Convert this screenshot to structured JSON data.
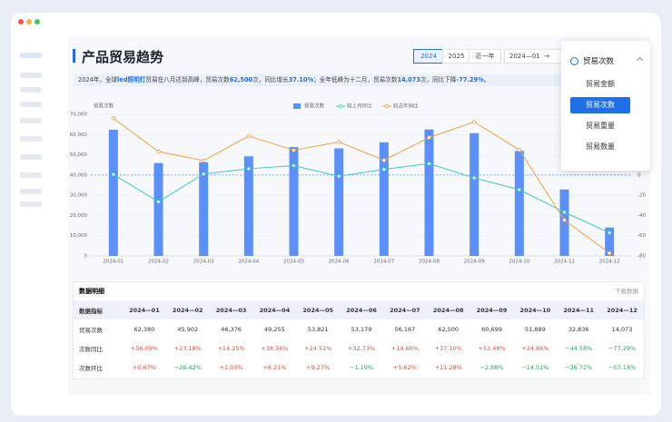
{
  "header": {
    "title": "产品贸易趋势",
    "buttons": [
      "2024",
      "2025",
      "近一年"
    ],
    "selected_button": 0,
    "date_start": "2024—01"
  },
  "summary": [
    "2024年，全球",
    "led照明灯",
    "贸易在八月达到高峰，贸易次数",
    "62,500",
    "次，同比增长",
    "37.10%",
    "；全年低峰为十二月，贸易次数",
    "14,073",
    "次，同比下降",
    "-77.29%",
    "。"
  ],
  "dropdown": {
    "label": "贸易次数",
    "options": [
      "贸易金额",
      "贸易次数",
      "贸易重量",
      "贸易数量"
    ],
    "selected": 1
  },
  "chart_data": {
    "type": "bar",
    "y_label": "贸易次数",
    "categories": [
      "2024-01",
      "2024-02",
      "2024-03",
      "2024-04",
      "2024-05",
      "2024-06",
      "2024-07",
      "2024-08",
      "2024-09",
      "2024-10",
      "2024-11",
      "2024-12"
    ],
    "series": [
      {
        "name": "贸易次数",
        "type": "bar",
        "color": "#5b8ff9",
        "values": [
          62380,
          45902,
          46376,
          49255,
          53821,
          53179,
          56167,
          62500,
          60699,
          51889,
          32836,
          14073
        ]
      },
      {
        "name": "较上月环比",
        "type": "line",
        "axis": "y2",
        "color": "#3cc9c1",
        "values": [
          0.67,
          -26.42,
          1.03,
          6.21,
          9.27,
          -1.19,
          5.62,
          11.28,
          -2.88,
          -14.51,
          -36.72,
          -57.14
        ]
      },
      {
        "name": "较去年同比",
        "type": "line",
        "axis": "y2",
        "color": "#f0a23b",
        "values": [
          56.09,
          23.18,
          14.25,
          38.56,
          24.51,
          32.73,
          14.6,
          37.1,
          52.48,
          24.86,
          -44.58,
          -77.29
        ]
      }
    ],
    "ylim": [
      0,
      70000
    ],
    "yticks": [
      0,
      {
        "value": 10000,
        "label": "10,000"
      },
      {
        "value": 20000,
        "label": "20,000"
      },
      {
        "value": 30000,
        "label": "30,000"
      },
      {
        "value": 40000,
        "label": "40,000"
      },
      {
        "value": 50000,
        "label": "50,000"
      },
      {
        "value": 60000,
        "label": "60,000"
      },
      {
        "value": 70000,
        "label": "70,000"
      }
    ],
    "y2lim": [
      -80,
      60
    ],
    "y2ticks": [
      0,
      -20,
      -40,
      -60,
      -80
    ],
    "grid": true
  },
  "table": {
    "title": "数据明细",
    "action": "下载数据",
    "columns": [
      "数据指标",
      "2024—01",
      "2024—02",
      "2024—03",
      "2024—04",
      "2024—05",
      "2024—06",
      "2024—07",
      "2024—08",
      "2024—09",
      "2024—10",
      "2024—11",
      "2024—12"
    ],
    "rows": [
      [
        "贸易次数",
        "62,380",
        "45,902",
        "46,376",
        "49,255",
        "53,821",
        "53,179",
        "56,167",
        "62,500",
        "60,699",
        "51,889",
        "32,836",
        "14,073"
      ],
      [
        "次数同比",
        "+56.09%",
        "+23.18%",
        "+14.25%",
        "+38.56%",
        "+24.51%",
        "+32.73%",
        "+14.60%",
        "+37.10%",
        "+52.48%",
        "+24.86%",
        "−44.58%",
        "−77.29%"
      ],
      [
        "次数环比",
        "+0.67%",
        "−26.42%",
        "+1.03%",
        "+6.21%",
        "+9.27%",
        "−1.19%",
        "+5.62%",
        "+11.28%",
        "−2.88%",
        "−14.51%",
        "−36.72%",
        "−57.14%"
      ]
    ]
  }
}
